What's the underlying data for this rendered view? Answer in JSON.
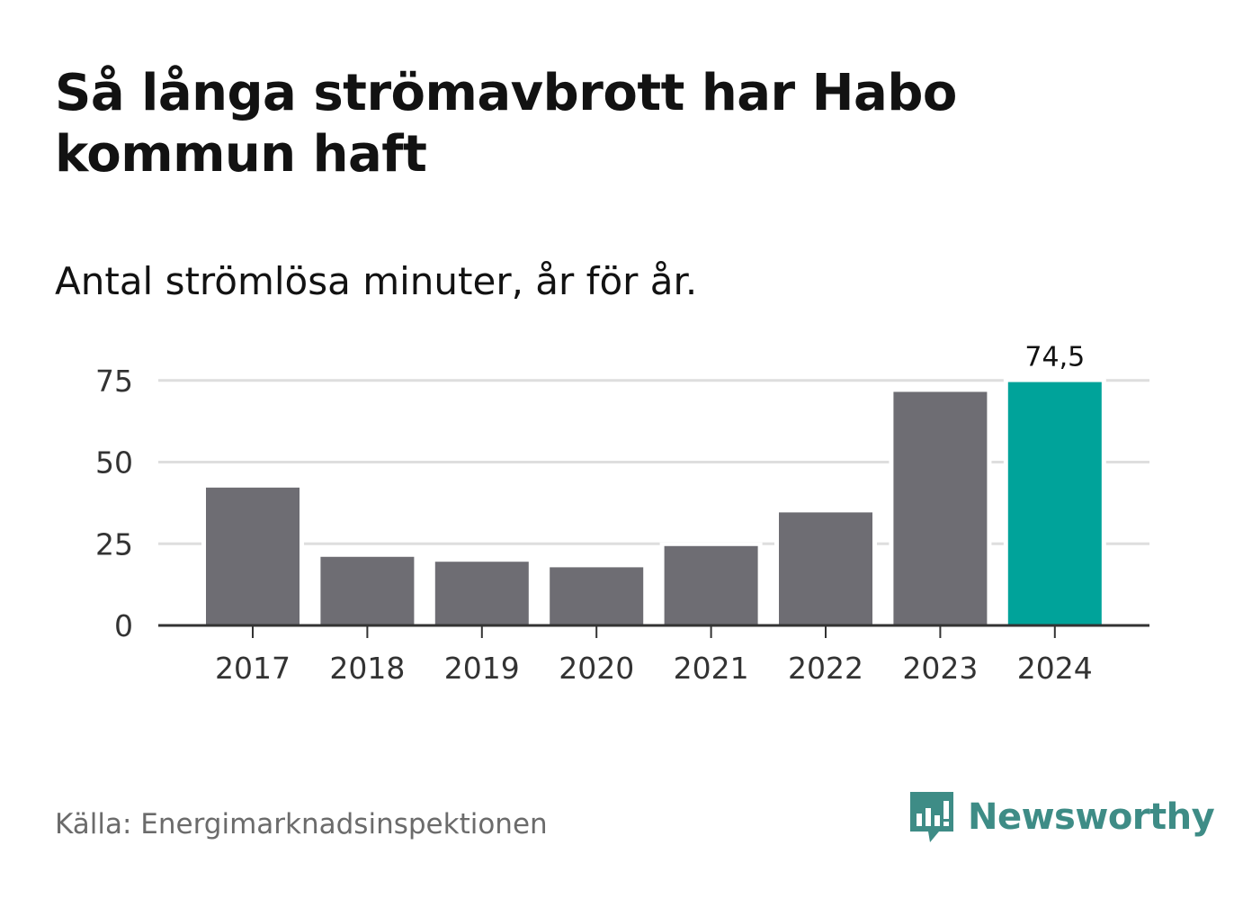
{
  "title": "Så långa strömavbrott har Habo kommun haft",
  "subtitle": "Antal strömlösa minuter, år för år.",
  "source": "Källa: Energimarknadsinspektionen",
  "brand": "Newsworthy",
  "colors": {
    "bar": "#6e6d73",
    "highlight": "#00a39a",
    "grid": "#dedede",
    "axis": "#333333",
    "brand": "#3e8c86"
  },
  "chart_data": {
    "type": "bar",
    "categories": [
      "2017",
      "2018",
      "2019",
      "2020",
      "2021",
      "2022",
      "2023",
      "2024"
    ],
    "values": [
      42.2,
      21.0,
      19.5,
      17.8,
      24.3,
      34.6,
      71.5,
      74.5
    ],
    "highlight_index": 7,
    "data_labels": [
      {
        "index": 7,
        "text": "74,5"
      }
    ],
    "yticks": [
      0,
      25,
      50,
      75
    ],
    "ylim": [
      0,
      80
    ],
    "grid": true,
    "xlabel": "",
    "ylabel": ""
  }
}
